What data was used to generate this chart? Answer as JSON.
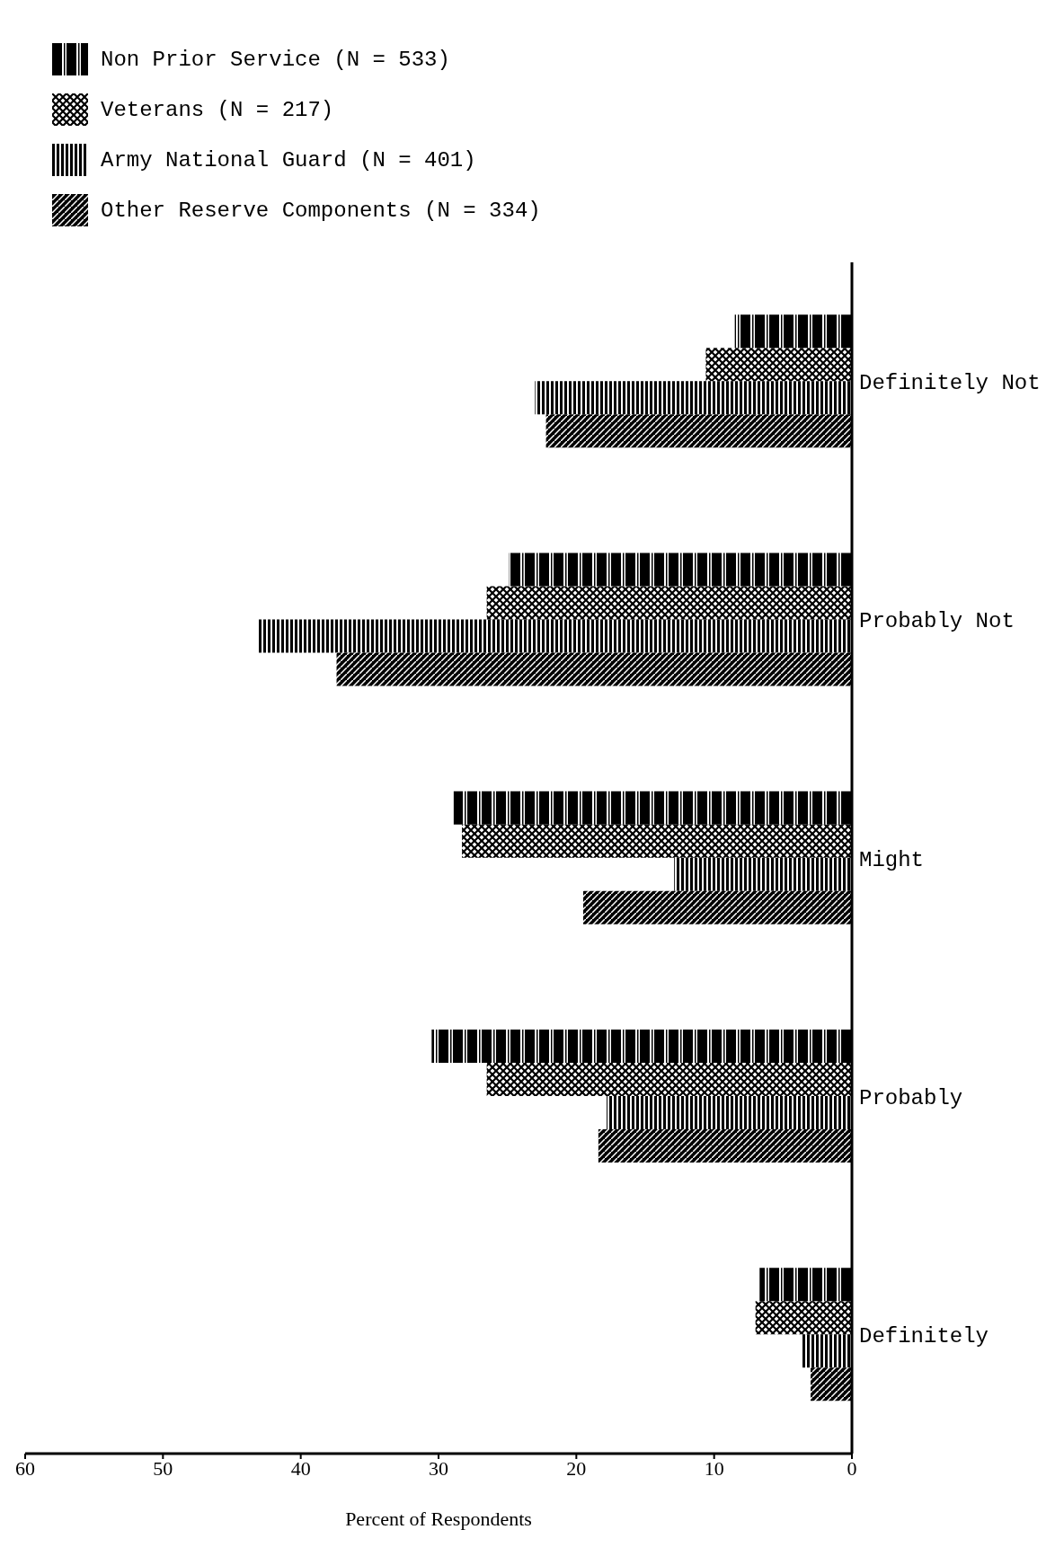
{
  "chart_data": {
    "type": "bar",
    "orientation": "horizontal",
    "xlabel": "Percent of Respondents",
    "categories": [
      "Definitely Not",
      "Probably Not",
      "Might",
      "Probably",
      "Definitely"
    ],
    "series": [
      {
        "name": "Non Prior Service (N = 533)",
        "color": "#000000",
        "values": [
          8.5,
          24.9,
          28.9,
          30.5,
          6.7
        ]
      },
      {
        "name": "Veterans (N = 217)",
        "color": "#000000",
        "values": [
          10.6,
          26.5,
          28.3,
          26.5,
          7.0
        ]
      },
      {
        "name": "Army National Guard (N = 401)",
        "color": "#000000",
        "values": [
          23.0,
          43.1,
          12.9,
          17.8,
          3.6
        ]
      },
      {
        "name": "Other Reserve Components (N = 334)",
        "color": "#000000",
        "values": [
          22.2,
          37.4,
          19.5,
          18.4,
          3.0
        ]
      }
    ],
    "xlim": [
      60,
      0
    ],
    "xticks": [
      0,
      10,
      20,
      30,
      40,
      50,
      60
    ],
    "grid": false,
    "legend": "top left"
  }
}
